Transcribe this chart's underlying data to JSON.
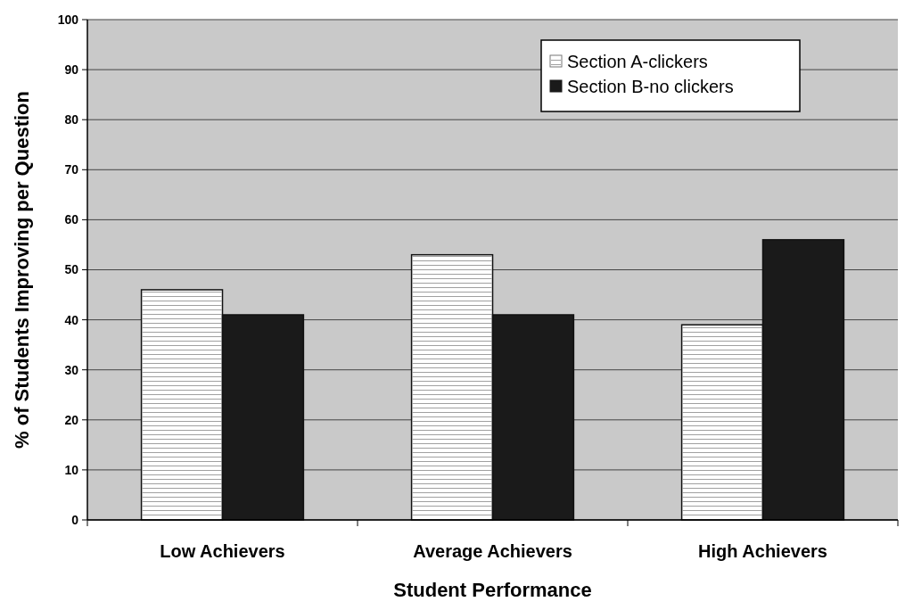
{
  "chart_data": {
    "type": "bar",
    "xlabel": "Student Performance",
    "ylabel": "% of Students Improving per Question",
    "categories": [
      "Low Achievers",
      "Average Achievers",
      "High Achievers"
    ],
    "series": [
      {
        "name": "Section A-clickers",
        "color": "#ffffff",
        "values": [
          46,
          53,
          39
        ]
      },
      {
        "name": "Section B-no clickers",
        "color": "#1a1a1a",
        "values": [
          41,
          41,
          56
        ]
      }
    ],
    "ylim": [
      0,
      100
    ],
    "yticks": [
      0,
      10,
      20,
      30,
      40,
      50,
      60,
      70,
      80,
      90,
      100
    ],
    "grid": "y",
    "legend": "top right"
  }
}
